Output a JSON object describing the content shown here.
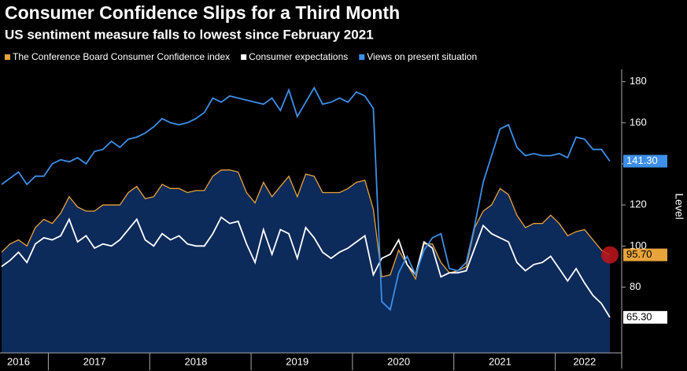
{
  "chart_data": {
    "type": "line",
    "title": "Consumer Confidence Slips for a Third Month",
    "subtitle": "US sentiment measure falls to lowest since February 2021",
    "y_axis_label": "Level",
    "categories": [
      null,
      null,
      "2016",
      null,
      null,
      null,
      null,
      null,
      null,
      null,
      null,
      "2017",
      null,
      null,
      null,
      null,
      null,
      null,
      null,
      null,
      null,
      null,
      null,
      "2018",
      null,
      null,
      null,
      null,
      null,
      null,
      null,
      null,
      null,
      null,
      null,
      "2019",
      null,
      null,
      null,
      null,
      null,
      null,
      null,
      null,
      null,
      null,
      null,
      "2020",
      null,
      null,
      null,
      null,
      null,
      null,
      null,
      null,
      null,
      null,
      null,
      "2021",
      null,
      null,
      null,
      null,
      null,
      null,
      null,
      null,
      null,
      "2022",
      null,
      null,
      null
    ],
    "ylim": [
      48,
      186
    ],
    "yticks": [
      80,
      100,
      120,
      140,
      160,
      180
    ],
    "grid": false,
    "fill_series": 0,
    "fill_color": "#0c2a5a",
    "series": [
      {
        "name": "The Conference Board Consumer Confidence index",
        "color": "#e8a33a",
        "values": [
          97,
          101,
          103,
          100,
          109,
          113,
          111,
          116,
          124,
          119,
          117,
          117,
          120,
          120,
          120,
          126,
          129,
          123,
          124,
          130,
          128,
          128,
          126,
          127,
          127,
          134,
          137,
          137,
          136,
          126,
          121,
          131,
          124,
          129,
          134,
          124,
          135,
          134,
          126,
          126,
          126,
          128,
          131,
          132,
          118,
          85,
          86,
          98,
          91,
          84,
          101,
          101,
          92,
          87,
          88,
          90,
          109,
          117,
          120,
          128,
          125,
          115,
          109,
          111,
          111,
          115,
          111,
          105,
          107,
          108,
          103,
          98,
          95.7
        ],
        "value_labels": [
          null,
          null,
          null,
          null,
          null,
          null,
          null,
          null,
          null,
          null,
          null,
          null,
          null,
          null,
          null,
          null,
          null,
          null,
          null,
          null,
          null,
          null,
          null,
          null,
          null,
          null,
          null,
          null,
          null,
          null,
          null,
          null,
          null,
          null,
          null,
          null,
          null,
          null,
          null,
          null,
          null,
          null,
          null,
          null,
          null,
          null,
          null,
          null,
          null,
          null,
          null,
          null,
          null,
          null,
          null,
          null,
          null,
          null,
          null,
          null,
          null,
          null,
          null,
          null,
          null,
          null,
          null,
          null,
          null,
          null,
          null,
          null,
          "95.70"
        ]
      },
      {
        "name": "Consumer expectations",
        "color": "#ffffff",
        "values": [
          90,
          93,
          97,
          92,
          101,
          104,
          103,
          105,
          113,
          102,
          105,
          99,
          101,
          100,
          103,
          108,
          113,
          103,
          100,
          106,
          103,
          105,
          101,
          100,
          100,
          106,
          114,
          111,
          112,
          101,
          92,
          108,
          96,
          108,
          106,
          94,
          109,
          104,
          97,
          94,
          97,
          99,
          102,
          105,
          86,
          94,
          96,
          103,
          91,
          86,
          102,
          99,
          85,
          87,
          87,
          88,
          99,
          110,
          106,
          104,
          102,
          92,
          88,
          91,
          92,
          95,
          89,
          83,
          89,
          82,
          76,
          72,
          65.3
        ],
        "value_labels": [
          null,
          null,
          null,
          null,
          null,
          null,
          null,
          null,
          null,
          null,
          null,
          null,
          null,
          null,
          null,
          null,
          null,
          null,
          null,
          null,
          null,
          null,
          null,
          null,
          null,
          null,
          null,
          null,
          null,
          null,
          null,
          null,
          null,
          null,
          null,
          null,
          null,
          null,
          null,
          null,
          null,
          null,
          null,
          null,
          null,
          null,
          null,
          null,
          null,
          null,
          null,
          null,
          null,
          null,
          null,
          null,
          null,
          null,
          null,
          null,
          null,
          null,
          null,
          null,
          null,
          null,
          null,
          null,
          null,
          null,
          null,
          null,
          "65.30"
        ]
      },
      {
        "name": "Views on present situation",
        "color": "#3d8fe8",
        "values": [
          130,
          133,
          136,
          130,
          134,
          134,
          140,
          142,
          141,
          143,
          140,
          146,
          147,
          151,
          148,
          152,
          153,
          155,
          158,
          162,
          160,
          159,
          160,
          162,
          165,
          172,
          170,
          173,
          172,
          171,
          170,
          169,
          172,
          166,
          176,
          163,
          170,
          177,
          169,
          170,
          172,
          170,
          175,
          173,
          167,
          73,
          69,
          87,
          95,
          86,
          98,
          104,
          106,
          89,
          88,
          92,
          110,
          131,
          144,
          157,
          159,
          148,
          144,
          145,
          144,
          144,
          145,
          143,
          153,
          152,
          147,
          147,
          141.3
        ],
        "value_labels": [
          null,
          null,
          null,
          null,
          null,
          null,
          null,
          null,
          null,
          null,
          null,
          null,
          null,
          null,
          null,
          null,
          null,
          null,
          null,
          null,
          null,
          null,
          null,
          null,
          null,
          null,
          null,
          null,
          null,
          null,
          null,
          null,
          null,
          null,
          null,
          null,
          null,
          null,
          null,
          null,
          null,
          null,
          null,
          null,
          null,
          null,
          null,
          null,
          null,
          null,
          null,
          null,
          null,
          null,
          null,
          null,
          null,
          null,
          null,
          null,
          null,
          null,
          null,
          null,
          null,
          null,
          null,
          null,
          null,
          null,
          null,
          null,
          "141.30"
        ]
      }
    ]
  }
}
